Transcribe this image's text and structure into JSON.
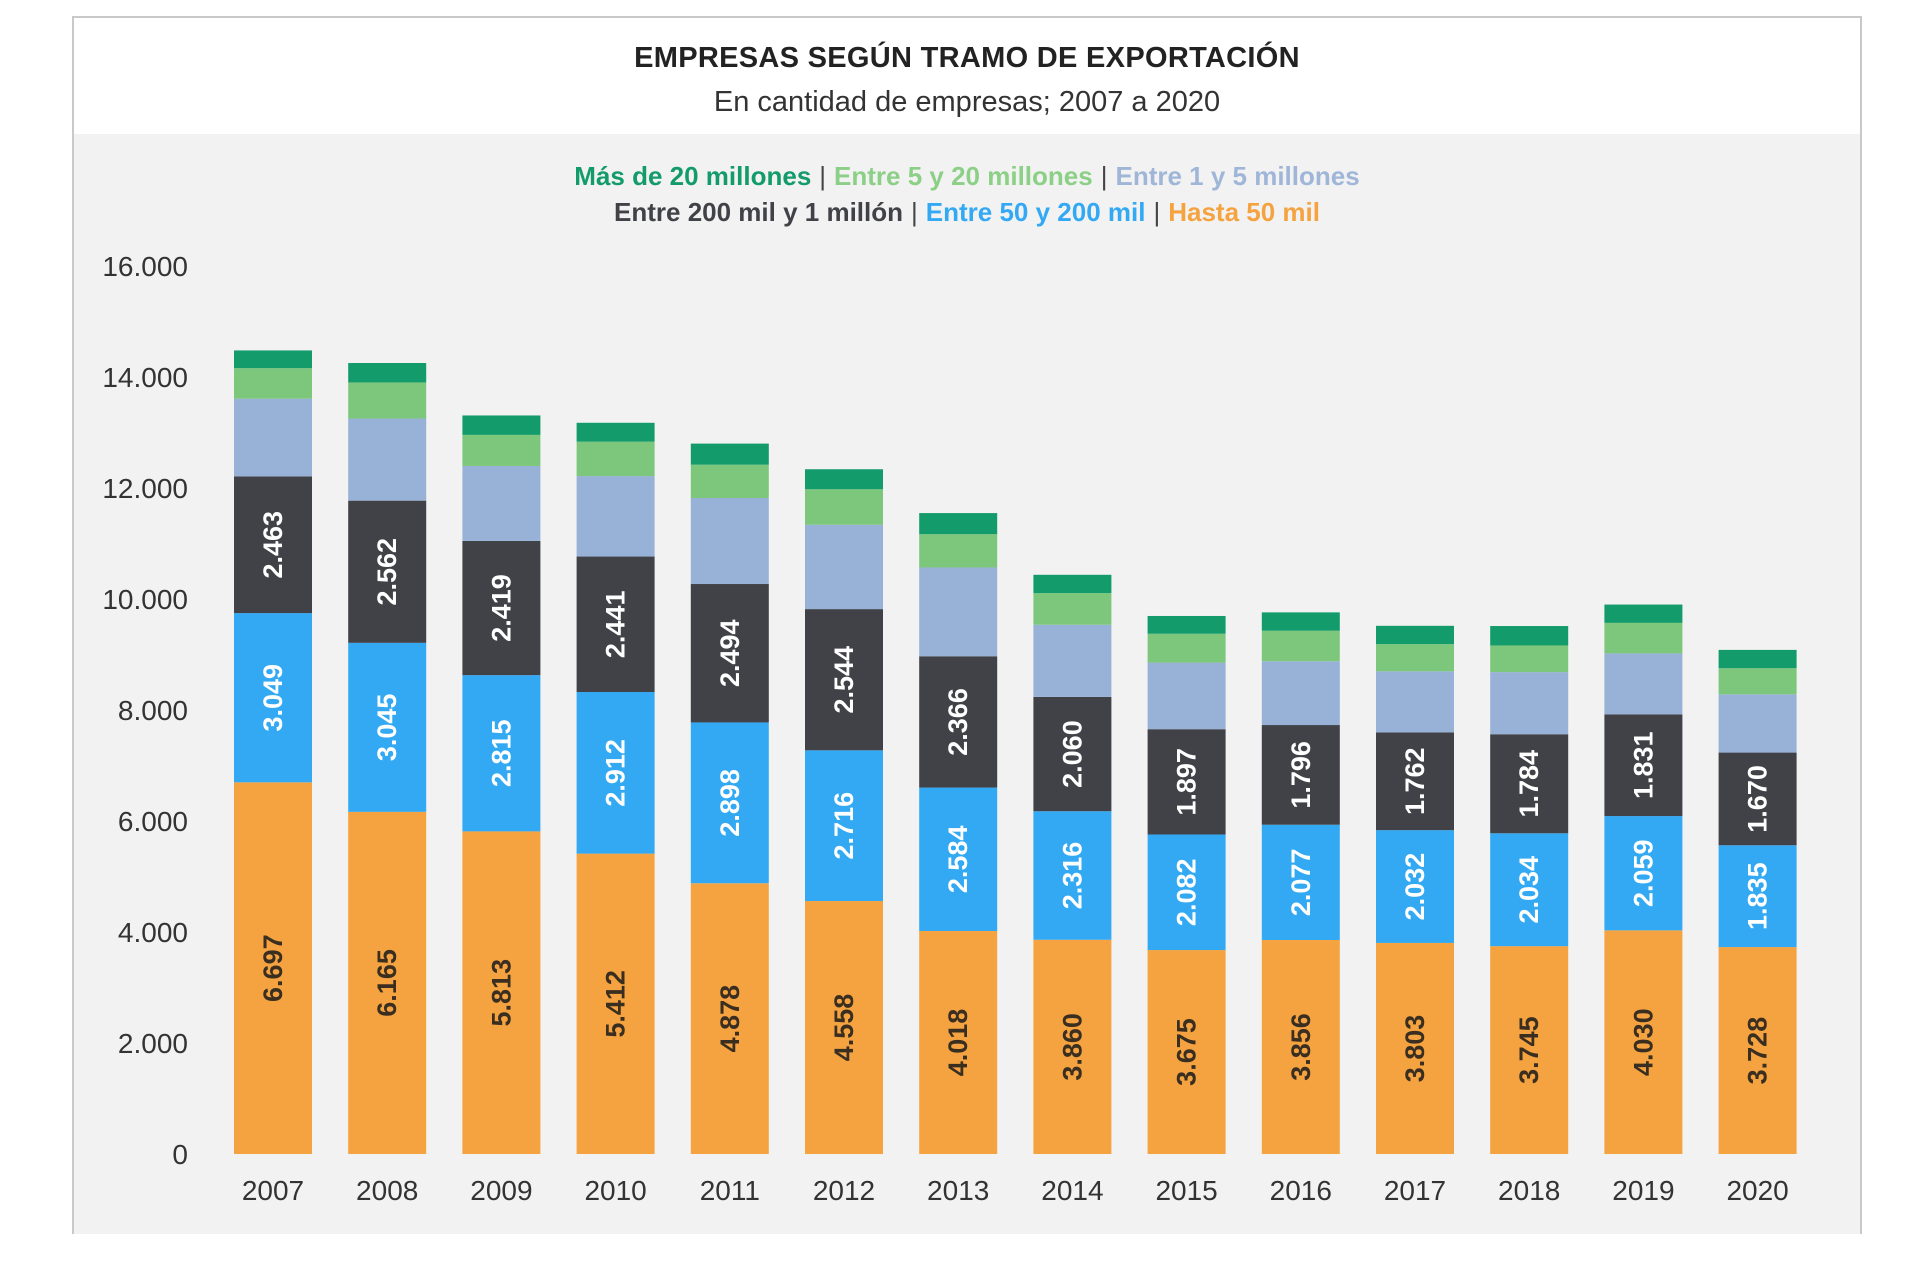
{
  "chart_data": {
    "type": "bar",
    "stacked": true,
    "title": "EMPRESAS SEGÚN TRAMO DE EXPORTACIÓN",
    "subtitle": "En cantidad de empresas; 2007 a 2020",
    "xlabel": "",
    "ylabel": "",
    "ylim": [
      0,
      16000
    ],
    "yticks": [
      0,
      2000,
      4000,
      6000,
      8000,
      10000,
      12000,
      14000,
      16000
    ],
    "ytick_labels": [
      "0",
      "2.000",
      "4.000",
      "6.000",
      "8.000",
      "10.000",
      "12.000",
      "14.000",
      "16.000"
    ],
    "grid": false,
    "legend_position": "top",
    "categories": [
      "2007",
      "2008",
      "2009",
      "2010",
      "2011",
      "2012",
      "2013",
      "2014",
      "2015",
      "2016",
      "2017",
      "2018",
      "2019",
      "2020"
    ],
    "series": [
      {
        "name": "Hasta 50 mil",
        "color": "#f4a340",
        "labeled": true,
        "values": [
          6697,
          6165,
          5813,
          5412,
          4878,
          4558,
          4018,
          3860,
          3675,
          3856,
          3803,
          3745,
          4030,
          3728
        ],
        "labels": [
          "6.697",
          "6.165",
          "5.813",
          "5.412",
          "4.878",
          "4.558",
          "4.018",
          "3.860",
          "3.675",
          "3.856",
          "3.803",
          "3.745",
          "4.030",
          "3.728"
        ]
      },
      {
        "name": "Entre 50 y 200 mil",
        "color": "#33a9f3",
        "labeled": true,
        "values": [
          3049,
          3045,
          2815,
          2912,
          2898,
          2716,
          2584,
          2316,
          2082,
          2077,
          2032,
          2034,
          2059,
          1835
        ],
        "labels": [
          "3.049",
          "3.045",
          "2.815",
          "2.912",
          "2.898",
          "2.716",
          "2.584",
          "2.316",
          "2.082",
          "2.077",
          "2.032",
          "2.034",
          "2.059",
          "1.835"
        ]
      },
      {
        "name": "Entre 200 mil y 1 millón",
        "color": "#414247",
        "labeled": true,
        "values": [
          2463,
          2562,
          2419,
          2441,
          2494,
          2544,
          2366,
          2060,
          1897,
          1796,
          1762,
          1784,
          1831,
          1670
        ],
        "labels": [
          "2.463",
          "2.562",
          "2.419",
          "2.441",
          "2.494",
          "2.544",
          "2.366",
          "2.060",
          "1.897",
          "1.796",
          "1.762",
          "1.784",
          "1.831",
          "1.670"
        ]
      },
      {
        "name": "Entre 1 y 5 millones",
        "color": "#97b2d6",
        "labeled": false,
        "values": [
          1400,
          1480,
          1350,
          1450,
          1550,
          1520,
          1600,
          1300,
          1200,
          1150,
          1100,
          1120,
          1100,
          1050
        ]
      },
      {
        "name": "Entre 5 y 20 millones",
        "color": "#7cc77b",
        "labeled": false,
        "values": [
          550,
          650,
          560,
          620,
          600,
          640,
          600,
          570,
          520,
          550,
          490,
          480,
          550,
          470
        ]
      },
      {
        "name": "Más de 20 millones",
        "color": "#139b6b",
        "labeled": false,
        "values": [
          320,
          350,
          350,
          340,
          380,
          360,
          380,
          330,
          320,
          330,
          330,
          350,
          330,
          330
        ]
      }
    ]
  },
  "legend": {
    "row1": [
      {
        "label": "Más de 20 millones",
        "color": "#139b6b"
      },
      {
        "label": "Entre 5 y 20 millones",
        "color": "#8ccf86"
      },
      {
        "label": "Entre 1 y 5 millones",
        "color": "#9fb6d8"
      }
    ],
    "row2": [
      {
        "label": "Entre 200 mil y 1 millón",
        "color": "#414247"
      },
      {
        "label": "Entre 50 y 200 mil",
        "color": "#33a9f3"
      },
      {
        "label": "Hasta 50 mil",
        "color": "#f4a340"
      }
    ]
  }
}
